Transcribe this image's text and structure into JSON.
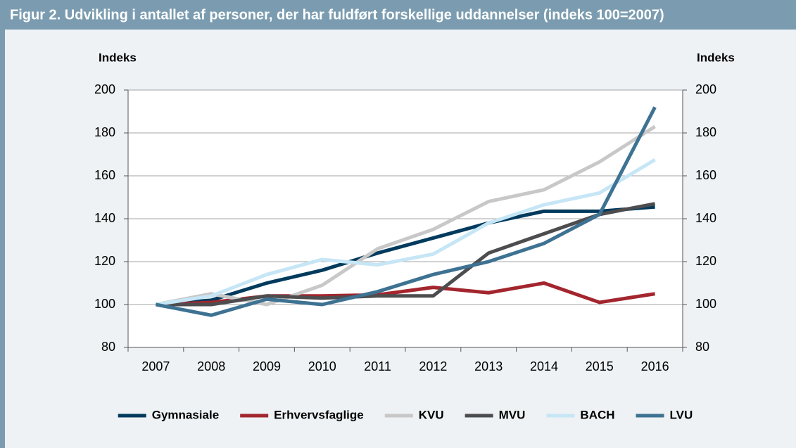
{
  "chart_data": {
    "type": "line",
    "title": "Figur 2. Udvikling i antallet af personer, der har fuldført forskellige uddannelser (indeks 100=2007)",
    "y_label": "Indeks",
    "y2_label": "Indeks",
    "categories": [
      "2007",
      "2008",
      "2009",
      "2010",
      "2011",
      "2012",
      "2013",
      "2014",
      "2015",
      "2016"
    ],
    "ylim": [
      80,
      200
    ],
    "yticks": [
      80,
      100,
      120,
      140,
      160,
      180,
      200
    ],
    "y2lim": [
      80,
      200
    ],
    "y2ticks": [
      80,
      100,
      120,
      140,
      160,
      180,
      200
    ],
    "grid": true,
    "legend": "bottom",
    "series": [
      {
        "name": "Gymnasiale",
        "color": "#003a5d",
        "values": [
          100,
          102,
          110,
          116,
          124,
          131,
          138,
          143.5,
          143.5,
          145.5
        ]
      },
      {
        "name": "Erhvervsfaglige",
        "color": "#a3262e",
        "values": [
          100,
          101,
          104,
          104,
          104.5,
          108,
          105.5,
          110,
          101,
          105
        ]
      },
      {
        "name": "KVU",
        "color": "#c8c8c8",
        "values": [
          100,
          105,
          100,
          109,
          126,
          135,
          148,
          153.5,
          166.5,
          183
        ]
      },
      {
        "name": "MVU",
        "color": "#4d4d4f",
        "values": [
          100,
          100,
          104,
          103,
          104,
          104,
          124,
          133,
          142,
          147
        ]
      },
      {
        "name": "BACH",
        "color": "#c6e6f6",
        "values": [
          100,
          104,
          114,
          121,
          118.5,
          123.5,
          138,
          146.5,
          152,
          167.5
        ]
      },
      {
        "name": "LVU",
        "color": "#3e7292",
        "values": [
          100,
          95,
          102.5,
          100,
          106,
          114,
          120,
          128.5,
          142,
          192
        ]
      }
    ]
  }
}
